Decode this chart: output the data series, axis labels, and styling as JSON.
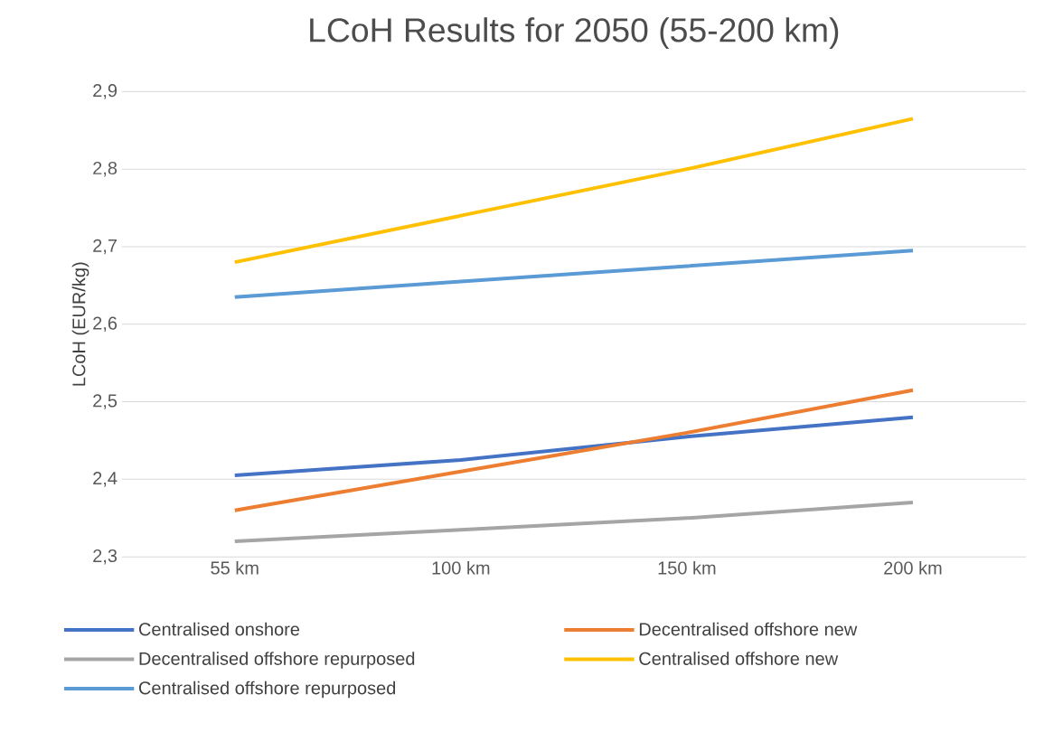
{
  "chart_data": {
    "type": "line",
    "title": "LCoH Results for 2050 (55-200 km)",
    "ylabel": "LCoH (EUR/kg)",
    "categories": [
      "55 km",
      "100 km",
      "150 km",
      "200 km"
    ],
    "ylim": [
      2.3,
      2.9
    ],
    "yticks": [
      {
        "value": 2.3,
        "label": "2,3"
      },
      {
        "value": 2.4,
        "label": "2,4"
      },
      {
        "value": 2.5,
        "label": "2,5"
      },
      {
        "value": 2.6,
        "label": "2,6"
      },
      {
        "value": 2.7,
        "label": "2,7"
      },
      {
        "value": 2.8,
        "label": "2,8"
      },
      {
        "value": 2.9,
        "label": "2,9"
      }
    ],
    "grid": "y",
    "legend": "bottom",
    "marker": "none",
    "line_style": "solid",
    "series": [
      {
        "name": "Centralised onshore",
        "color": "#4472c4",
        "values": [
          2.405,
          2.425,
          2.455,
          2.48
        ]
      },
      {
        "name": "Decentralised offshore new",
        "color": "#ed7d31",
        "values": [
          2.36,
          2.41,
          2.46,
          2.515
        ]
      },
      {
        "name": "Decentralised offshore repurposed",
        "color": "#a5a5a5",
        "values": [
          2.32,
          2.335,
          2.35,
          2.37
        ]
      },
      {
        "name": "Centralised offshore new",
        "color": "#ffc000",
        "values": [
          2.68,
          2.74,
          2.8,
          2.865
        ]
      },
      {
        "name": "Centralised offshore repurposed",
        "color": "#5b9bd5",
        "values": [
          2.635,
          2.655,
          2.675,
          2.695
        ]
      }
    ]
  }
}
